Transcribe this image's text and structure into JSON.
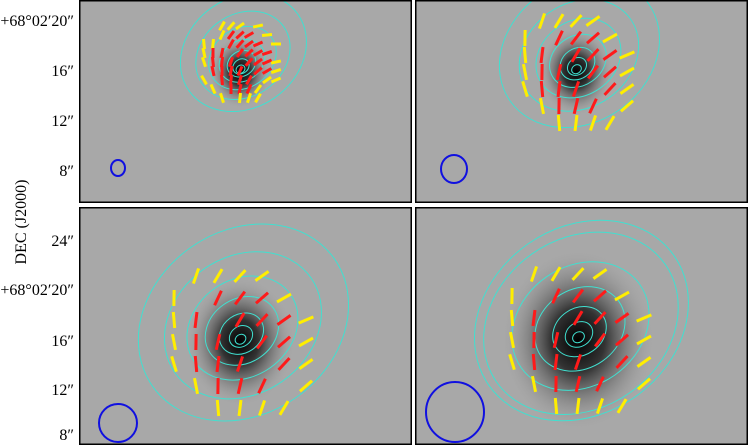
{
  "chart_data": {
    "type": "image",
    "ylabel": "DEC (J2000)",
    "panels": [
      {
        "position": "top-left",
        "yticks": [
          "+68°02′20″",
          "16″",
          "12″",
          "8″"
        ]
      },
      {
        "position": "top-right",
        "yticks": []
      },
      {
        "position": "bottom-left",
        "yticks": [
          "24″",
          "+68°02′20″",
          "16″",
          "12″",
          "8″"
        ]
      },
      {
        "position": "bottom-right",
        "yticks": []
      }
    ],
    "colors": {
      "contours": "#40e0d0",
      "vectors_primary": "#ff1a1a",
      "vectors_secondary": "#ffee00",
      "beam": "#1010e0",
      "background": "#a8a8a8"
    },
    "grid": false
  }
}
